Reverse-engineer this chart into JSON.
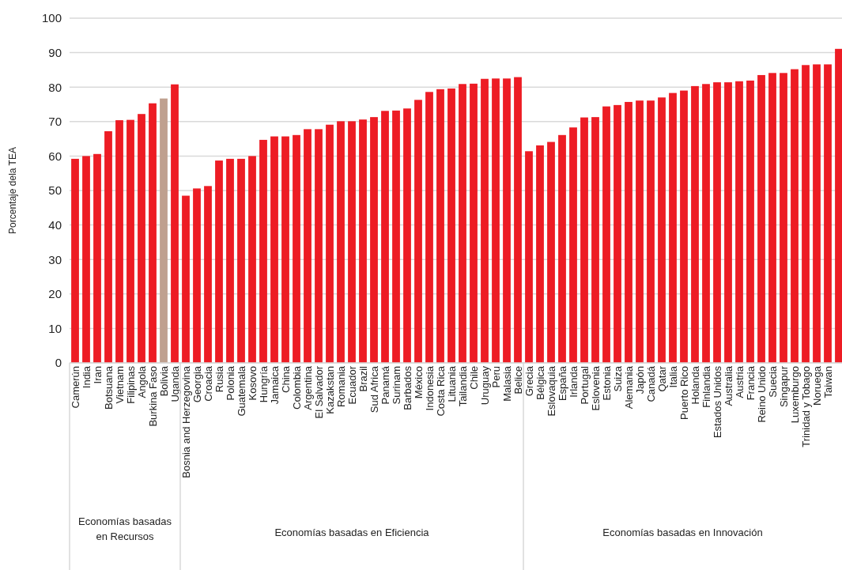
{
  "chart_data": {
    "type": "bar",
    "ylabel": "Porcentaje dela TEA",
    "categories": [
      "Camerún",
      "India",
      "Iran",
      "Botsuana",
      "Vietnam",
      "Filipinas",
      "Angola",
      "Burkina Faso",
      "Bolivia",
      "Uganda",
      "Bosnia and Herzegovina",
      "Georgia",
      "Croacia",
      "Rusia",
      "Polonia",
      "Guatemala",
      "Kosovo",
      "Hungría",
      "Jamaica",
      "China",
      "Colombia",
      "Argentina",
      "El Salvador",
      "Kazakstan",
      "Romania",
      "Ecuador",
      "Brazil",
      "Sud Africa",
      "Panamá",
      "Surinam",
      "Barbados",
      "México",
      "Indonesia",
      "Costa Rica",
      "Lituania",
      "Tailandia",
      "Chile",
      "Uruguay",
      "Peru",
      "Malasia",
      "Belice",
      "Grecia",
      "Bélgica",
      "Eslovaquia",
      "España",
      "Irlanda",
      "Portugal",
      "Eslovenia",
      "Estonia",
      "Suiza",
      "Alemania",
      "Japón",
      "Canadá",
      "Qatar",
      "Italia",
      "Puerto Rico",
      "Holanda",
      "Finlandia",
      "Estados Unidos",
      "Australia",
      "Austria",
      "Francia",
      "Reino Unido",
      "Suecia",
      "Singapur",
      "Luxemburgo",
      "Trinidad y Tobago",
      "Noruega",
      "Taiwan",
      null
    ],
    "values": [
      59.2,
      60.0,
      60.6,
      67.2,
      70.4,
      70.5,
      72.2,
      75.3,
      76.7,
      80.8,
      48.5,
      50.6,
      51.3,
      58.7,
      59.2,
      59.2,
      60.0,
      64.7,
      65.7,
      65.7,
      66.1,
      67.8,
      67.8,
      69.1,
      70.1,
      70.1,
      70.6,
      71.3,
      73.1,
      73.2,
      73.8,
      76.3,
      78.6,
      79.4,
      79.6,
      80.9,
      81.0,
      82.4,
      82.5,
      82.5,
      82.9,
      61.4,
      63.1,
      64.1,
      66.1,
      68.3,
      71.2,
      71.3,
      74.4,
      74.8,
      75.7,
      76.1,
      76.1,
      77.0,
      78.3,
      79.0,
      80.3,
      80.9,
      81.4,
      81.4,
      81.7,
      81.9,
      83.5,
      84.1,
      84.1,
      85.2,
      86.4,
      86.6,
      86.6,
      91.1
    ],
    "colors": [
      "#ed1c24",
      "#ed1c24",
      "#ed1c24",
      "#ed1c24",
      "#ed1c24",
      "#ed1c24",
      "#ed1c24",
      "#ed1c24",
      "#bfa08f",
      "#ed1c24",
      "#ed1c24",
      "#ed1c24",
      "#ed1c24",
      "#ed1c24",
      "#ed1c24",
      "#ed1c24",
      "#ed1c24",
      "#ed1c24",
      "#ed1c24",
      "#ed1c24",
      "#ed1c24",
      "#ed1c24",
      "#ed1c24",
      "#ed1c24",
      "#ed1c24",
      "#ed1c24",
      "#ed1c24",
      "#ed1c24",
      "#ed1c24",
      "#ed1c24",
      "#ed1c24",
      "#ed1c24",
      "#ed1c24",
      "#ed1c24",
      "#ed1c24",
      "#ed1c24",
      "#ed1c24",
      "#ed1c24",
      "#ed1c24",
      "#ed1c24",
      "#ed1c24",
      "#ed1c24",
      "#ed1c24",
      "#ed1c24",
      "#ed1c24",
      "#ed1c24",
      "#ed1c24",
      "#ed1c24",
      "#ed1c24",
      "#ed1c24",
      "#ed1c24",
      "#ed1c24",
      "#ed1c24",
      "#ed1c24",
      "#ed1c24",
      "#ed1c24",
      "#ed1c24",
      "#ed1c24",
      "#ed1c24",
      "#ed1c24",
      "#ed1c24",
      "#ed1c24",
      "#ed1c24",
      "#ed1c24",
      "#ed1c24",
      "#ed1c24",
      "#ed1c24",
      "#ed1c24",
      "#ed1c24",
      "#ed1c24"
    ],
    "ylim": [
      0,
      100
    ],
    "yticks": [
      0,
      10,
      20,
      30,
      40,
      50,
      60,
      70,
      80,
      90,
      100
    ],
    "grid": "y",
    "annotations": [
      "Economías basadas en Recursos",
      "Economías basadas en Eficiencia",
      "Economías basadas en Innovación"
    ]
  }
}
